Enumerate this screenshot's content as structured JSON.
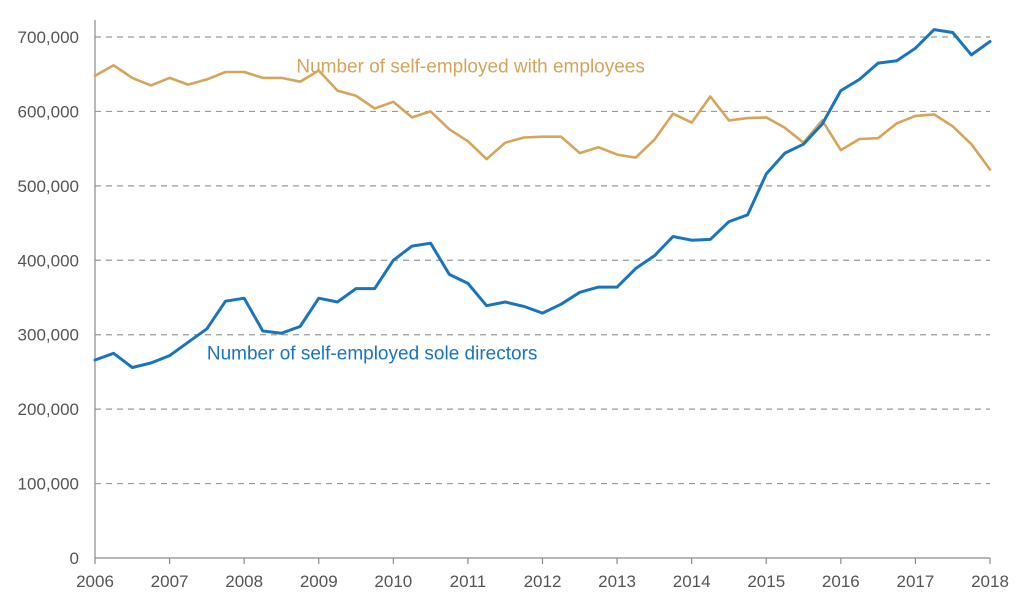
{
  "chart_data": {
    "type": "line",
    "title": "",
    "xlabel": "",
    "ylabel": "",
    "xlim": [
      2006,
      2018
    ],
    "ylim": [
      0,
      700000
    ],
    "x_ticks": [
      "2006",
      "2007",
      "2008",
      "2009",
      "2010",
      "2011",
      "2012",
      "2013",
      "2014",
      "2015",
      "2016",
      "2017",
      "2018"
    ],
    "y_ticks": [
      "0",
      "100,000",
      "200,000",
      "300,000",
      "400,000",
      "500,000",
      "600,000",
      "700,000"
    ],
    "grid": "horizontal dashed",
    "x": [
      2006.0,
      2006.25,
      2006.5,
      2006.75,
      2007.0,
      2007.25,
      2007.5,
      2007.75,
      2008.0,
      2008.25,
      2008.5,
      2008.75,
      2009.0,
      2009.25,
      2009.5,
      2009.75,
      2010.0,
      2010.25,
      2010.5,
      2010.75,
      2011.0,
      2011.25,
      2011.5,
      2011.75,
      2012.0,
      2012.25,
      2012.5,
      2012.75,
      2013.0,
      2013.25,
      2013.5,
      2013.75,
      2014.0,
      2014.25,
      2014.5,
      2014.75,
      2015.0,
      2015.25,
      2015.5,
      2015.75,
      2016.0,
      2016.25,
      2016.5,
      2016.75,
      2017.0,
      2017.25,
      2017.5,
      2017.75,
      2018.0
    ],
    "series": [
      {
        "name": "Number of self-employed with employees",
        "color": "#d4a55a",
        "values": [
          648000,
          662000,
          645000,
          635000,
          645000,
          636000,
          643000,
          653000,
          653000,
          645000,
          645000,
          640000,
          655000,
          628000,
          621000,
          604000,
          613000,
          592000,
          600000,
          576000,
          560000,
          536000,
          558000,
          565000,
          566000,
          566000,
          544000,
          552000,
          542000,
          538000,
          562000,
          597000,
          585000,
          620000,
          588000,
          591000,
          592000,
          578000,
          558000,
          588000,
          548000,
          563000,
          564000,
          584000,
          594000,
          596000,
          580000,
          556000,
          522000
        ]
      },
      {
        "name": "Number of self-employed sole directors",
        "color": "#1a75bc",
        "values": [
          266000,
          275000,
          256000,
          262000,
          272000,
          290000,
          308000,
          345000,
          349000,
          305000,
          302000,
          311000,
          349000,
          344000,
          362000,
          362000,
          400000,
          419000,
          423000,
          381000,
          369000,
          339000,
          344000,
          338000,
          329000,
          341000,
          357000,
          364000,
          364000,
          389000,
          406000,
          432000,
          427000,
          428000,
          452000,
          461000,
          516000,
          544000,
          556000,
          583000,
          628000,
          643000,
          665000,
          668000,
          685000,
          710000,
          706000,
          676000,
          694000
        ]
      }
    ],
    "annotations": [
      {
        "text": "Number of self-employed with employees",
        "x": 2008.7,
        "y": 652000,
        "color": "#d4a55a"
      },
      {
        "text": "Number of self-employed sole directors",
        "x": 2007.5,
        "y": 267000,
        "color": "#1a75bc"
      }
    ]
  }
}
